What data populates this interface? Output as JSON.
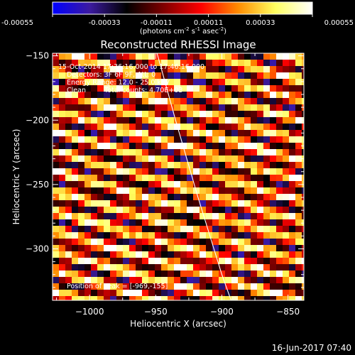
{
  "colorbar": {
    "ticks": [
      "-0.00055",
      "-0.00033",
      "-0.00011",
      "0.00011",
      "0.00033",
      "0.00055"
    ],
    "units_prefix": "(photons cm",
    "units_exp1": "-2",
    "units_mid": " s",
    "units_exp2": "-1",
    "units_mid2": " asec",
    "units_exp3": "-2",
    "units_suffix": ")",
    "colormap": [
      "#0000ff",
      "#3c1aa0",
      "#000000",
      "#800000",
      "#ff0000",
      "#ff8c00",
      "#ffff60",
      "#ffffff"
    ]
  },
  "chart_data": {
    "type": "heatmap",
    "title": "Reconstructed RHESSI Image",
    "xlabel": "Heliocentric X (arcsec)",
    "ylabel": "Heliocentric Y (arcsec)",
    "xlim": [
      -1028,
      -838
    ],
    "ylim": [
      -340,
      -148
    ],
    "xticks": [
      {
        "value": -1000,
        "label": "−1000"
      },
      {
        "value": -950,
        "label": "−950"
      },
      {
        "value": -900,
        "label": "−900"
      },
      {
        "value": -850,
        "label": "−850"
      }
    ],
    "yticks": [
      {
        "value": -150,
        "label": "−150"
      },
      {
        "value": -200,
        "label": "−200"
      },
      {
        "value": -250,
        "label": "−250"
      },
      {
        "value": -300,
        "label": "−300"
      }
    ],
    "value_range": [
      -0.00055,
      0.00055
    ],
    "pattern": "diagonal fringe stripes, values between -0.00055 and 0.00055 photons cm^-2 s^-1 asec^-2",
    "limb_curve": [
      [
        -949,
        -148
      ],
      [
        -935,
        -200
      ],
      [
        -918,
        -260
      ],
      [
        -900,
        -320
      ],
      [
        -893,
        -340
      ]
    ],
    "annotations": {
      "line1": "15-Oct-2014 17:36:16.000 to 17:46:16.000",
      "line2": "Detectors: 3F 6F 9F, Att: 0",
      "line3": "Energy Range: 12.0 - 25.0 keV",
      "line4_left": "Clean",
      "line4_right": "Total counts: 4.70E+03",
      "peak": "Position of Peak = [-969,-155]"
    }
  },
  "footer": {
    "timestamp": "16-Jun-2017 07:40"
  }
}
